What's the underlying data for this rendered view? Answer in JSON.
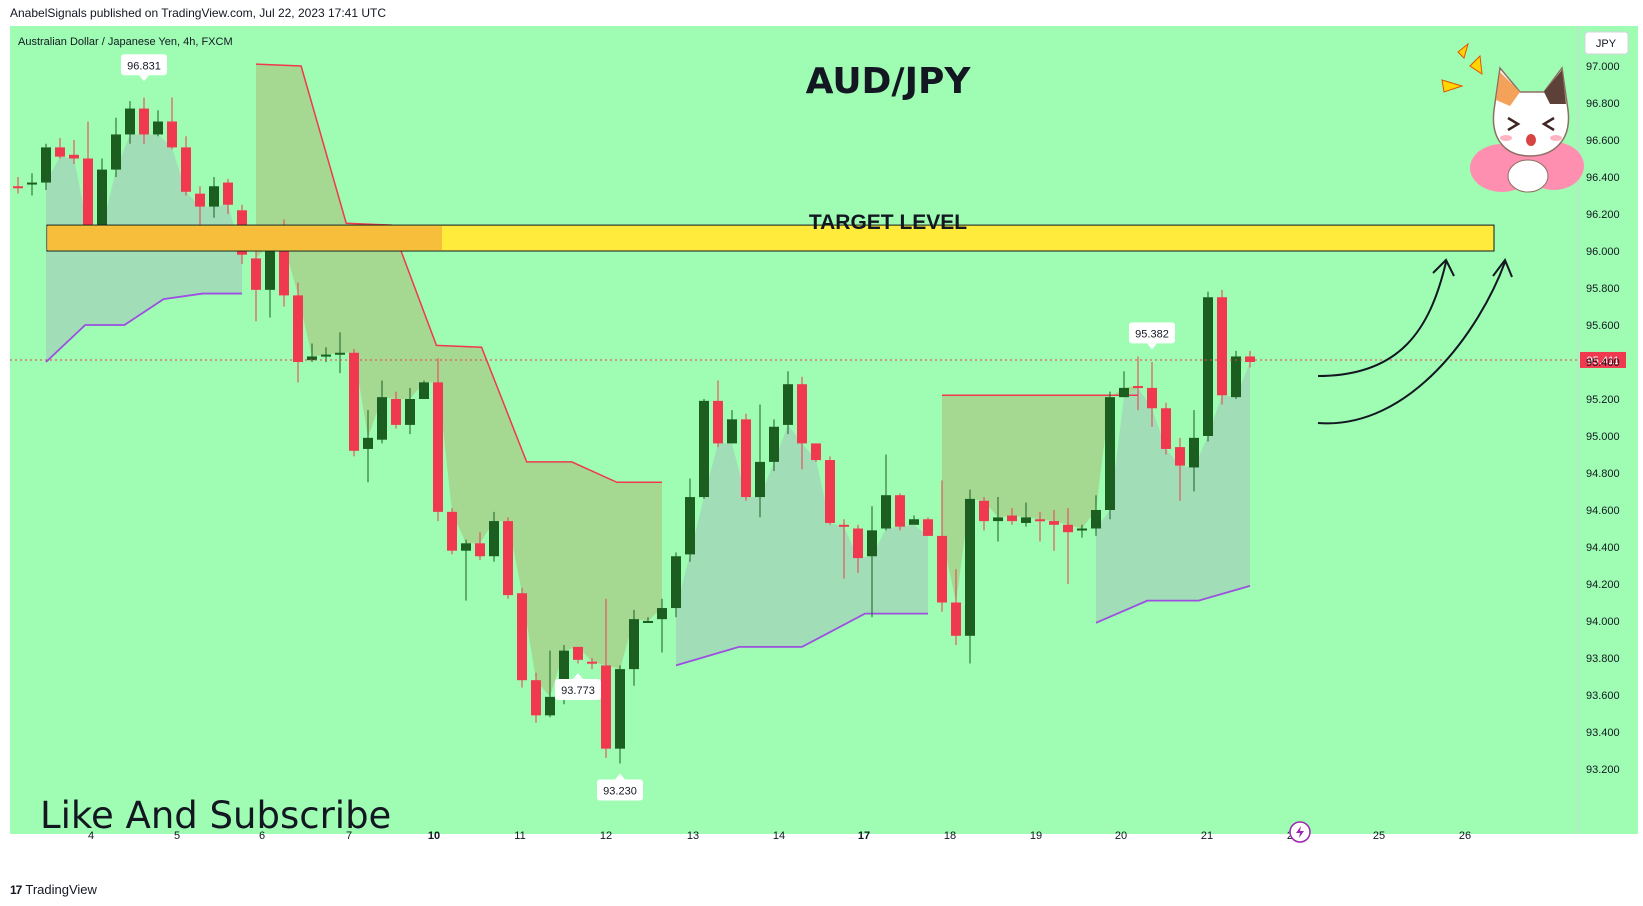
{
  "header": {
    "published_line": "AnabelSignals published on TradingView.com, Jul 22, 2023 17:41 UTC",
    "symbol_line": "Australian Dollar / Japanese Yen, 4h, FXCM",
    "currency_label": "JPY"
  },
  "footer": {
    "brand_logo": "17",
    "brand": "TradingView"
  },
  "colors": {
    "background": "#9ffdb3",
    "bull": "#1b5e20",
    "bear": "#f0394f",
    "target_zone": "#ffeb3b",
    "stop_red": "#f0394f",
    "stop_purple": "#9c4fe0",
    "price_badge": "#f0394f"
  },
  "chart_data": {
    "type": "candlestick",
    "title": "AUD/JPY",
    "annotations": {
      "target_label": "TARGET LEVEL",
      "target_zone": [
        96.0,
        96.14
      ],
      "cta": "Like And Subscribe",
      "current_price": "95.411",
      "high_labels": [
        {
          "text": "96.831",
          "value": 96.831
        },
        {
          "text": "95.382",
          "value": 95.382
        }
      ],
      "low_labels": [
        {
          "text": "93.773",
          "value": 93.773
        },
        {
          "text": "93.230",
          "value": 93.23
        }
      ]
    },
    "ylim": [
      93.05,
      97.1
    ],
    "y_ticks": [
      "97.000",
      "96.800",
      "96.600",
      "96.400",
      "96.200",
      "96.000",
      "95.800",
      "95.600",
      "95.400",
      "95.200",
      "95.000",
      "94.800",
      "94.600",
      "94.400",
      "94.200",
      "94.000",
      "93.800",
      "93.600",
      "93.400",
      "93.200"
    ],
    "x_ticks": [
      "4",
      "5",
      "6",
      "7",
      "10",
      "11",
      "12",
      "13",
      "14",
      "17",
      "18",
      "19",
      "20",
      "21",
      "24",
      "25",
      "26"
    ],
    "x_ticks_bold": [
      "10",
      "17"
    ],
    "candles": [
      [
        96.35,
        96.34,
        96.4,
        96.31
      ],
      [
        96.36,
        96.37,
        96.42,
        96.3
      ],
      [
        96.37,
        96.56,
        96.58,
        96.33
      ],
      [
        96.56,
        96.51,
        96.61,
        96.5
      ],
      [
        96.52,
        96.5,
        96.6,
        96.47
      ],
      [
        96.5,
        96.12,
        96.7,
        96.05
      ],
      [
        96.12,
        96.44,
        96.5,
        96.07
      ],
      [
        96.44,
        96.63,
        96.72,
        96.4
      ],
      [
        96.63,
        96.77,
        96.81,
        96.58
      ],
      [
        96.77,
        96.63,
        96.83,
        96.58
      ],
      [
        96.63,
        96.7,
        96.76,
        96.62
      ],
      [
        96.7,
        96.56,
        96.83,
        96.55
      ],
      [
        96.56,
        96.32,
        96.62,
        96.3
      ],
      [
        96.31,
        96.24,
        96.35,
        96.07
      ],
      [
        96.24,
        96.35,
        96.4,
        96.18
      ],
      [
        96.37,
        96.25,
        96.39,
        96.2
      ],
      [
        96.22,
        95.98,
        96.25,
        95.93
      ],
      [
        95.96,
        95.79,
        96.0,
        95.62
      ],
      [
        95.79,
        96.04,
        96.12,
        95.64
      ],
      [
        96.04,
        95.76,
        96.17,
        95.7
      ],
      [
        95.76,
        95.4,
        95.83,
        95.29
      ],
      [
        95.41,
        95.43,
        95.5,
        95.4
      ],
      [
        95.43,
        95.44,
        95.48,
        95.4
      ],
      [
        95.44,
        95.45,
        95.56,
        95.34
      ],
      [
        95.45,
        94.92,
        95.47,
        94.89
      ],
      [
        94.93,
        94.99,
        95.14,
        94.75
      ],
      [
        94.98,
        95.21,
        95.3,
        94.96
      ],
      [
        95.2,
        95.06,
        95.24,
        95.04
      ],
      [
        95.06,
        95.2,
        95.26,
        95.01
      ],
      [
        95.2,
        95.29,
        95.3,
        95.21
      ],
      [
        95.29,
        94.59,
        95.42,
        94.54
      ],
      [
        94.59,
        94.38,
        94.61,
        94.36
      ],
      [
        94.38,
        94.42,
        94.44,
        94.11
      ],
      [
        94.42,
        94.35,
        94.48,
        94.33
      ],
      [
        94.35,
        94.54,
        94.59,
        94.32
      ],
      [
        94.54,
        94.14,
        94.56,
        94.12
      ],
      [
        94.15,
        93.68,
        94.18,
        93.64
      ],
      [
        93.68,
        93.49,
        93.72,
        93.45
      ],
      [
        93.49,
        93.59,
        93.84,
        93.48
      ],
      [
        93.59,
        93.84,
        93.87,
        93.55
      ],
      [
        93.86,
        93.79,
        93.85,
        93.77
      ],
      [
        93.78,
        93.77,
        93.8,
        93.74
      ],
      [
        93.76,
        93.31,
        94.12,
        93.26
      ],
      [
        93.31,
        93.74,
        93.76,
        93.23
      ],
      [
        93.74,
        94.01,
        94.06,
        93.65
      ],
      [
        94.0,
        94.0,
        94.02,
        93.99
      ],
      [
        94.01,
        94.07,
        94.12,
        93.83
      ],
      [
        94.07,
        94.35,
        94.37,
        94.02
      ],
      [
        94.36,
        94.67,
        94.77,
        94.32
      ],
      [
        94.67,
        95.19,
        95.2,
        94.66
      ],
      [
        95.19,
        94.96,
        95.3,
        94.94
      ],
      [
        94.96,
        95.09,
        95.14,
        95.04
      ],
      [
        95.09,
        94.67,
        95.12,
        94.65
      ],
      [
        94.67,
        94.86,
        95.17,
        94.56
      ],
      [
        94.86,
        95.05,
        95.09,
        94.81
      ],
      [
        95.06,
        95.28,
        95.35,
        95.01
      ],
      [
        95.28,
        94.96,
        95.32,
        94.82
      ],
      [
        94.96,
        94.87,
        94.95,
        94.86
      ],
      [
        94.87,
        94.53,
        94.89,
        94.52
      ],
      [
        94.52,
        94.51,
        94.55,
        94.23
      ],
      [
        94.5,
        94.34,
        94.52,
        94.26
      ],
      [
        94.35,
        94.49,
        94.62,
        94.02
      ],
      [
        94.5,
        94.68,
        94.9,
        94.49
      ],
      [
        94.68,
        94.51,
        94.69,
        94.49
      ],
      [
        94.52,
        94.55,
        94.57,
        94.53
      ],
      [
        94.55,
        94.46,
        94.56,
        94.46
      ],
      [
        94.46,
        94.1,
        94.76,
        94.05
      ],
      [
        94.1,
        93.92,
        94.28,
        93.87
      ],
      [
        93.92,
        94.66,
        94.71,
        93.77
      ],
      [
        94.65,
        94.54,
        94.67,
        94.49
      ],
      [
        94.54,
        94.56,
        94.67,
        94.43
      ],
      [
        94.57,
        94.54,
        94.61,
        94.52
      ],
      [
        94.53,
        94.56,
        94.64,
        94.51
      ],
      [
        94.55,
        94.54,
        94.59,
        94.43
      ],
      [
        94.54,
        94.52,
        94.6,
        94.38
      ],
      [
        94.52,
        94.48,
        94.61,
        94.2
      ],
      [
        94.49,
        94.5,
        94.52,
        94.45
      ],
      [
        94.5,
        94.6,
        94.68,
        94.46
      ],
      [
        94.6,
        95.21,
        95.24,
        94.55
      ],
      [
        95.21,
        95.26,
        95.35,
        95.21
      ],
      [
        95.27,
        95.26,
        95.43,
        95.14
      ],
      [
        95.26,
        95.15,
        95.4,
        95.05
      ],
      [
        95.15,
        94.93,
        95.18,
        94.9
      ],
      [
        94.94,
        94.84,
        94.99,
        94.65
      ],
      [
        94.83,
        94.99,
        95.14,
        94.7
      ],
      [
        95.0,
        95.75,
        95.78,
        94.97
      ],
      [
        95.75,
        95.22,
        95.79,
        95.17
      ],
      [
        95.21,
        95.43,
        95.46,
        95.2
      ],
      [
        95.43,
        95.4,
        95.46,
        95.37
      ]
    ],
    "stop_lines": {
      "red": [
        {
          "from": 17,
          "to": 46,
          "values": [
            97.01,
            97.0,
            96.15,
            96.14,
            95.49,
            95.48,
            94.86,
            94.86,
            94.75,
            94.75
          ]
        },
        {
          "from": 66,
          "to": 80,
          "values": [
            95.22,
            95.22
          ]
        }
      ],
      "purple": [
        {
          "from": 2,
          "to": 16,
          "values": [
            95.4,
            95.6,
            95.6,
            95.74,
            95.77,
            95.77
          ]
        },
        {
          "from": 47,
          "to": 65,
          "values": [
            93.76,
            93.86,
            93.86,
            94.04,
            94.04
          ]
        },
        {
          "from": 77,
          "to": 88,
          "values": [
            93.99,
            94.11,
            94.11,
            94.19
          ]
        }
      ]
    }
  }
}
